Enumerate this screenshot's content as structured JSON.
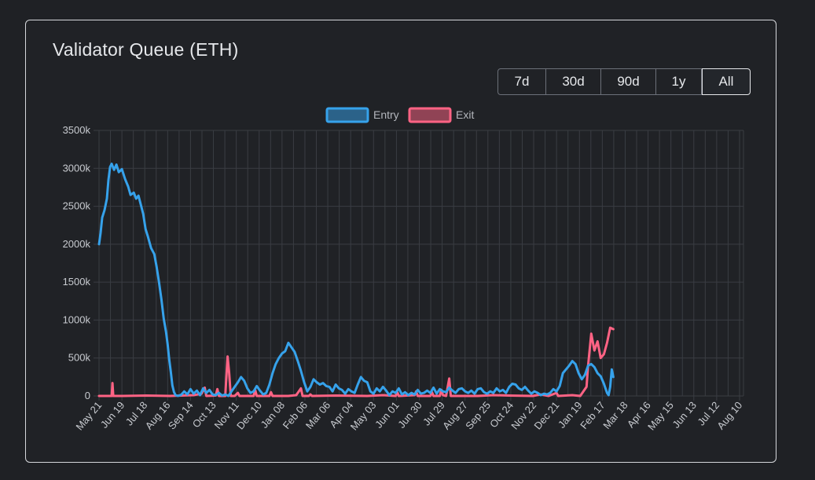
{
  "card": {
    "title": "Validator Queue (ETH)"
  },
  "range_buttons": [
    {
      "label": "7d",
      "active": false
    },
    {
      "label": "30d",
      "active": false
    },
    {
      "label": "90d",
      "active": false
    },
    {
      "label": "1y",
      "active": false
    },
    {
      "label": "All",
      "active": true
    }
  ],
  "colors": {
    "entry": "#36a2eb",
    "exit": "#ff6384",
    "grid": "#3a3d43",
    "background": "#1f2125"
  },
  "chart_data": {
    "type": "line",
    "title": "",
    "xlabel": "",
    "ylabel": "",
    "ylim": [
      0,
      3500
    ],
    "y_unit": "k",
    "y_ticks": [
      "0",
      "500k",
      "1000k",
      "1500k",
      "2000k",
      "2500k",
      "3000k",
      "3500k"
    ],
    "grid": true,
    "legend_position": "top",
    "x_ticks": [
      "May 21",
      "Jun 19",
      "Jul 18",
      "Aug 16",
      "Sep 14",
      "Oct 13",
      "Nov 11",
      "Dec 10",
      "Jan 08",
      "Feb 06",
      "Mar 06",
      "Apr 04",
      "May 03",
      "Jun 01",
      "Jun 30",
      "Jul 29",
      "Aug 27",
      "Sep 25",
      "Oct 24",
      "Nov 22",
      "Dec 21",
      "Jan 19",
      "Feb 17",
      "Mar 18",
      "Apr 16",
      "May 15",
      "Jun 13",
      "Jul 12",
      "Aug 10"
    ],
    "x_tick_step_days": 29,
    "series": [
      {
        "name": "Entry",
        "color": "#36a2eb",
        "points": [
          [
            0,
            2000
          ],
          [
            2,
            2150
          ],
          [
            4,
            2350
          ],
          [
            7,
            2450
          ],
          [
            10,
            2600
          ],
          [
            12,
            2850
          ],
          [
            14,
            3020
          ],
          [
            16,
            3060
          ],
          [
            19,
            2980
          ],
          [
            22,
            3050
          ],
          [
            25,
            2950
          ],
          [
            29,
            2990
          ],
          [
            33,
            2860
          ],
          [
            37,
            2760
          ],
          [
            40,
            2650
          ],
          [
            44,
            2680
          ],
          [
            47,
            2600
          ],
          [
            50,
            2640
          ],
          [
            53,
            2520
          ],
          [
            56,
            2400
          ],
          [
            59,
            2200
          ],
          [
            62,
            2100
          ],
          [
            66,
            1950
          ],
          [
            70,
            1870
          ],
          [
            73,
            1700
          ],
          [
            76,
            1500
          ],
          [
            79,
            1280
          ],
          [
            82,
            1020
          ],
          [
            85,
            840
          ],
          [
            87,
            680
          ],
          [
            89,
            480
          ],
          [
            91,
            320
          ],
          [
            93,
            140
          ],
          [
            95,
            50
          ],
          [
            97,
            10
          ],
          [
            100,
            0
          ],
          [
            104,
            15
          ],
          [
            108,
            60
          ],
          [
            112,
            20
          ],
          [
            116,
            90
          ],
          [
            120,
            30
          ],
          [
            124,
            70
          ],
          [
            128,
            10
          ],
          [
            132,
            100
          ],
          [
            136,
            40
          ],
          [
            140,
            80
          ],
          [
            144,
            20
          ],
          [
            148,
            10
          ],
          [
            152,
            40
          ],
          [
            156,
            5
          ],
          [
            160,
            20
          ],
          [
            164,
            0
          ],
          [
            168,
            60
          ],
          [
            172,
            120
          ],
          [
            176,
            180
          ],
          [
            180,
            250
          ],
          [
            184,
            200
          ],
          [
            188,
            100
          ],
          [
            192,
            40
          ],
          [
            196,
            60
          ],
          [
            200,
            130
          ],
          [
            204,
            70
          ],
          [
            208,
            20
          ],
          [
            212,
            40
          ],
          [
            216,
            150
          ],
          [
            220,
            300
          ],
          [
            224,
            420
          ],
          [
            228,
            500
          ],
          [
            232,
            560
          ],
          [
            236,
            590
          ],
          [
            240,
            700
          ],
          [
            244,
            640
          ],
          [
            248,
            580
          ],
          [
            252,
            460
          ],
          [
            256,
            330
          ],
          [
            260,
            180
          ],
          [
            264,
            60
          ],
          [
            268,
            120
          ],
          [
            272,
            220
          ],
          [
            276,
            180
          ],
          [
            280,
            150
          ],
          [
            284,
            170
          ],
          [
            288,
            130
          ],
          [
            292,
            120
          ],
          [
            296,
            60
          ],
          [
            300,
            150
          ],
          [
            304,
            100
          ],
          [
            308,
            80
          ],
          [
            312,
            30
          ],
          [
            316,
            90
          ],
          [
            320,
            60
          ],
          [
            324,
            40
          ],
          [
            328,
            150
          ],
          [
            332,
            250
          ],
          [
            336,
            200
          ],
          [
            340,
            180
          ],
          [
            344,
            60
          ],
          [
            348,
            30
          ],
          [
            352,
            100
          ],
          [
            356,
            60
          ],
          [
            360,
            120
          ],
          [
            364,
            70
          ],
          [
            368,
            10
          ],
          [
            372,
            60
          ],
          [
            376,
            40
          ],
          [
            380,
            100
          ],
          [
            384,
            20
          ],
          [
            388,
            50
          ],
          [
            392,
            10
          ],
          [
            396,
            40
          ],
          [
            400,
            20
          ],
          [
            404,
            80
          ],
          [
            408,
            30
          ],
          [
            412,
            40
          ],
          [
            416,
            70
          ],
          [
            420,
            40
          ],
          [
            424,
            110
          ],
          [
            428,
            30
          ],
          [
            432,
            90
          ],
          [
            436,
            60
          ],
          [
            440,
            50
          ],
          [
            444,
            110
          ],
          [
            448,
            70
          ],
          [
            452,
            40
          ],
          [
            456,
            90
          ],
          [
            460,
            100
          ],
          [
            464,
            60
          ],
          [
            468,
            40
          ],
          [
            472,
            70
          ],
          [
            476,
            30
          ],
          [
            480,
            90
          ],
          [
            484,
            100
          ],
          [
            488,
            50
          ],
          [
            492,
            30
          ],
          [
            496,
            60
          ],
          [
            500,
            40
          ],
          [
            504,
            100
          ],
          [
            508,
            60
          ],
          [
            512,
            80
          ],
          [
            516,
            40
          ],
          [
            520,
            120
          ],
          [
            524,
            160
          ],
          [
            528,
            150
          ],
          [
            532,
            100
          ],
          [
            536,
            80
          ],
          [
            540,
            120
          ],
          [
            544,
            70
          ],
          [
            548,
            30
          ],
          [
            552,
            60
          ],
          [
            556,
            40
          ],
          [
            560,
            10
          ],
          [
            564,
            30
          ],
          [
            568,
            20
          ],
          [
            572,
            40
          ],
          [
            576,
            90
          ],
          [
            580,
            60
          ],
          [
            584,
            130
          ],
          [
            588,
            300
          ],
          [
            592,
            350
          ],
          [
            596,
            400
          ],
          [
            600,
            460
          ],
          [
            604,
            420
          ],
          [
            608,
            300
          ],
          [
            612,
            220
          ],
          [
            616,
            280
          ],
          [
            620,
            400
          ],
          [
            624,
            420
          ],
          [
            628,
            380
          ],
          [
            632,
            300
          ],
          [
            636,
            260
          ],
          [
            640,
            160
          ],
          [
            644,
            40
          ],
          [
            646,
            10
          ],
          [
            648,
            120
          ],
          [
            650,
            350
          ],
          [
            652,
            250
          ]
        ]
      },
      {
        "name": "Exit",
        "color": "#ff6384",
        "points": [
          [
            0,
            0
          ],
          [
            10,
            0
          ],
          [
            16,
            0
          ],
          [
            17,
            170
          ],
          [
            18,
            0
          ],
          [
            30,
            0
          ],
          [
            60,
            5
          ],
          [
            90,
            0
          ],
          [
            120,
            10
          ],
          [
            130,
            30
          ],
          [
            134,
            110
          ],
          [
            136,
            0
          ],
          [
            148,
            5
          ],
          [
            150,
            90
          ],
          [
            152,
            0
          ],
          [
            160,
            0
          ],
          [
            163,
            520
          ],
          [
            165,
            300
          ],
          [
            167,
            0
          ],
          [
            172,
            0
          ],
          [
            176,
            40
          ],
          [
            178,
            0
          ],
          [
            196,
            0
          ],
          [
            198,
            80
          ],
          [
            200,
            0
          ],
          [
            216,
            0
          ],
          [
            218,
            50
          ],
          [
            220,
            0
          ],
          [
            240,
            0
          ],
          [
            250,
            10
          ],
          [
            256,
            100
          ],
          [
            258,
            0
          ],
          [
            266,
            0
          ],
          [
            268,
            20
          ],
          [
            270,
            0
          ],
          [
            300,
            5
          ],
          [
            340,
            0
          ],
          [
            360,
            10
          ],
          [
            376,
            0
          ],
          [
            378,
            50
          ],
          [
            380,
            0
          ],
          [
            400,
            10
          ],
          [
            402,
            60
          ],
          [
            404,
            0
          ],
          [
            420,
            0
          ],
          [
            422,
            50
          ],
          [
            424,
            0
          ],
          [
            432,
            0
          ],
          [
            434,
            80
          ],
          [
            436,
            10
          ],
          [
            440,
            0
          ],
          [
            444,
            230
          ],
          [
            446,
            0
          ],
          [
            460,
            0
          ],
          [
            480,
            0
          ],
          [
            500,
            10
          ],
          [
            520,
            5
          ],
          [
            550,
            0
          ],
          [
            560,
            20
          ],
          [
            570,
            0
          ],
          [
            580,
            40
          ],
          [
            582,
            0
          ],
          [
            600,
            10
          ],
          [
            610,
            0
          ],
          [
            618,
            120
          ],
          [
            620,
            400
          ],
          [
            624,
            820
          ],
          [
            628,
            600
          ],
          [
            632,
            720
          ],
          [
            636,
            500
          ],
          [
            640,
            550
          ],
          [
            644,
            700
          ],
          [
            648,
            900
          ],
          [
            652,
            880
          ]
        ]
      }
    ]
  }
}
